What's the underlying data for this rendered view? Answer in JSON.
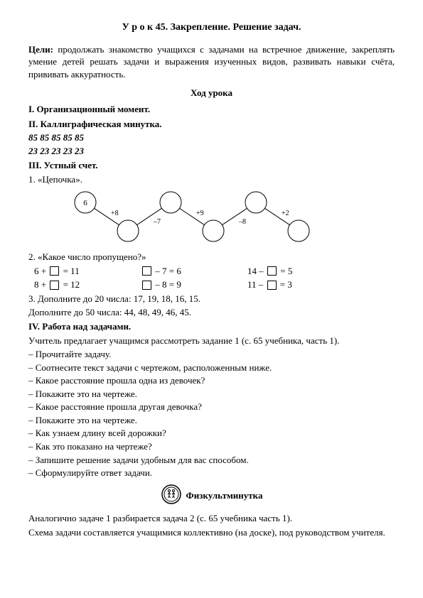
{
  "title": "У р о к  45. Закрепление. Решение задач.",
  "goals_label": "Цели:",
  "goals_text": " продолжать знакомство учащихся с задачами на встречное движение, закреплять умение детей решать задачи и выражения изученных видов, развивать навыки счёта, прививать аккуратность.",
  "lesson_flow_heading": "Ход урока",
  "section1": "I. Организационный момент.",
  "section2": "II. Каллиграфическая минутка.",
  "calligraphy_line1": "85 85 85 85 85",
  "calligraphy_line2": "23 23 23 23 23",
  "section3": "III. Устный счет.",
  "item3_1": "1. «Цепочка».",
  "chain": {
    "start_value": "6",
    "ops": [
      "+8",
      "–7",
      "+9",
      "–8",
      "+2"
    ],
    "circle_stroke": "#000000",
    "circle_fill": "#ffffff",
    "line_stroke": "#000000",
    "circle_r": 15,
    "text_fontsize": 10
  },
  "item3_2": "2. «Какое число пропущено?»",
  "equations": {
    "row1": {
      "c1_pre": "6 + ",
      "c1_post": " = 11",
      "c2_pre": "",
      "c2_post": " – 7 = 6",
      "c3_pre": "14 – ",
      "c3_post": " = 5"
    },
    "row2": {
      "c1_pre": "8 + ",
      "c1_post": " = 12",
      "c2_pre": "",
      "c2_post": " – 8 = 9",
      "c3_pre": "11 – ",
      "c3_post": " = 3"
    }
  },
  "item3_3a": "3. Дополните до 20 числа: 17, 19, 18, 16, 15.",
  "item3_3b": "Дополните до 50 числа: 44, 48, 49, 46, 45.",
  "section4": "IV. Работа над задачами.",
  "section4_intro": "Учитель предлагает учащимся рассмотреть задание 1 (с. 65 учебника, часть 1).",
  "questions": [
    "– Прочитайте задачу.",
    "– Соотнесите текст задачи с чертежом, расположенным ниже.",
    "– Какое расстояние прошла одна из девочек?",
    "– Покажите это на чертеже.",
    "– Какое расстояние прошла другая девочка?",
    "– Покажите это на чертеже.",
    "– Как узнаем длину всей дорожки?",
    "– Как это показано на чертеже?",
    "– Запишите решение задачи удобным для вас способом.",
    "– Сформулируйте ответ задачи."
  ],
  "fizkult_label": "Физкультминутка",
  "after1": "Аналогично задаче 1 разбирается задача 2 (с. 65 учебника часть 1).",
  "after2": "Схема задачи составляется учащимися коллективно (на доске), под руководством учителя."
}
